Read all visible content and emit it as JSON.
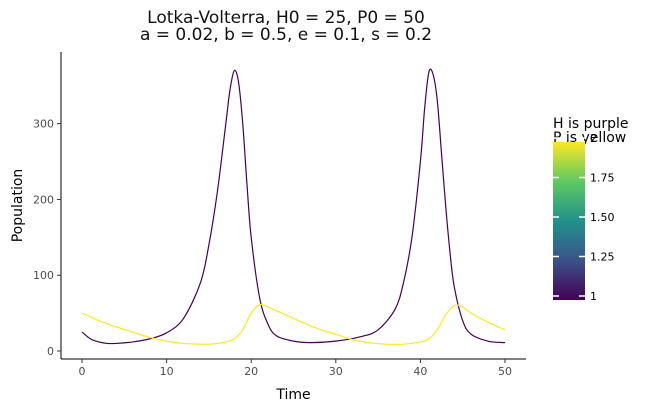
{
  "chart_data": {
    "type": "line",
    "title": "Lotka-Volterra, H0 = 25, P0 = 50",
    "subtitle": "a = 0.02, b = 0.5, e = 0.1, s = 0.2",
    "xlabel": "Time",
    "ylabel": "Population",
    "xlim": [
      0,
      50
    ],
    "ylim": [
      0,
      380
    ],
    "xticks": [
      0,
      10,
      20,
      30,
      40,
      50
    ],
    "yticks": [
      0,
      100,
      200,
      300
    ],
    "grid": false,
    "params": {
      "H0": 25,
      "P0": 50,
      "a": 0.02,
      "b": 0.5,
      "e": 0.1,
      "s": 0.2
    },
    "series": [
      {
        "color": "#440154",
        "x": [
          0,
          1,
          2,
          3,
          4,
          6,
          8,
          10,
          12,
          14,
          15,
          16,
          17,
          17.5,
          18,
          18.5,
          19,
          19.5,
          20,
          21,
          22,
          23,
          25,
          27,
          30,
          33,
          35,
          37,
          38,
          39,
          40,
          40.5,
          41,
          41.5,
          42,
          42.5,
          43,
          43.5,
          44,
          45,
          46,
          48,
          50
        ],
        "y": [
          25,
          16,
          12,
          10,
          10,
          12,
          16,
          24,
          43,
          90,
          140,
          210,
          300,
          345,
          370,
          355,
          300,
          220,
          150,
          70,
          35,
          20,
          13,
          11,
          13,
          19,
          28,
          55,
          90,
          150,
          250,
          320,
          368,
          365,
          330,
          260,
          190,
          130,
          85,
          40,
          22,
          13,
          11
        ]
      },
      {
        "color": "#fde725",
        "x": [
          0,
          2,
          4,
          6,
          8,
          10,
          12,
          14,
          15,
          16,
          17,
          18,
          19,
          20,
          21,
          22,
          24,
          26,
          28,
          30,
          32,
          34,
          36,
          38,
          40,
          41,
          42,
          43,
          44,
          45,
          46,
          48,
          50
        ],
        "y": [
          50,
          40,
          32,
          25,
          18,
          13,
          10,
          9,
          9,
          10,
          12,
          16,
          28,
          50,
          61,
          58,
          48,
          38,
          29,
          22,
          15,
          11,
          9,
          9,
          12,
          16,
          28,
          48,
          60,
          58,
          50,
          38,
          28
        ]
      }
    ],
    "legend": {
      "title_lines": [
        "H is purple",
        "P is yellow"
      ],
      "labels": [
        "1",
        "1.25",
        "1.50",
        "1.75",
        "2"
      ],
      "values": [
        1,
        1.25,
        1.5,
        1.75,
        2
      ],
      "range": [
        1,
        2
      ],
      "colors": [
        "#440154",
        "#3b528b",
        "#21918c",
        "#5ec962",
        "#fde725"
      ],
      "placement": "right"
    }
  }
}
